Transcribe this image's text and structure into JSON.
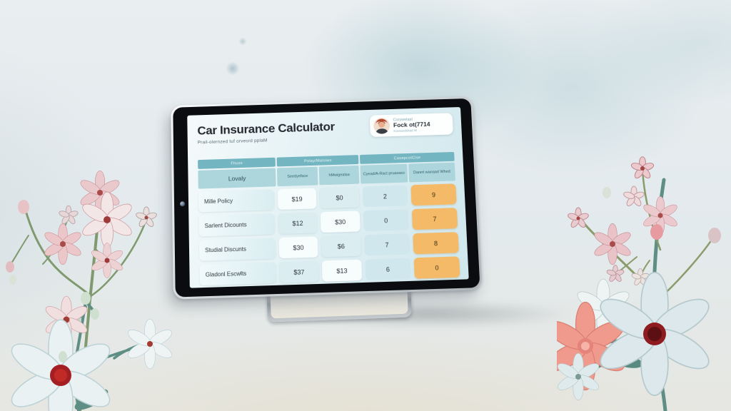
{
  "app": {
    "title": "Car Insurance Calculator",
    "subtitle": "Prail-olernzed tuf orvesrd pplaM",
    "profile": {
      "label": "Corywelaat",
      "name": "Fock ot(7714",
      "sub": "Konseedshad W",
      "avatar_icon": "person-avatar"
    }
  },
  "table": {
    "group_headers": [
      "Fhuse",
      "Polay/Malsiws",
      "CasepcotClse"
    ],
    "columns": [
      "Lovaly",
      "Seedyeface",
      "hMwigealaa",
      "Cyead/A-Ract pruasaso",
      "Darert wanaad Whed"
    ],
    "rows": [
      {
        "label": "Mille Policy",
        "values": [
          "$19",
          "$0",
          "2",
          "9"
        ]
      },
      {
        "label": "Sarlent Dicounts",
        "values": [
          "$12",
          "$30",
          "0",
          "7"
        ]
      },
      {
        "label": "Studial Discunts",
        "values": [
          "$30",
          "$6",
          "7",
          "8"
        ]
      },
      {
        "label": "Gladonl Escwlts",
        "values": [
          "$37",
          "$13",
          "6",
          "0"
        ]
      }
    ]
  },
  "colors": {
    "accent_teal": "#73b5c1",
    "subheader_teal": "#acd6dc",
    "highlight_orange": "#f4ba68",
    "screen_bg": "#e3f1f4",
    "flower_red_center": "#9e1f22",
    "flower_coral": "#ef9a8c"
  }
}
